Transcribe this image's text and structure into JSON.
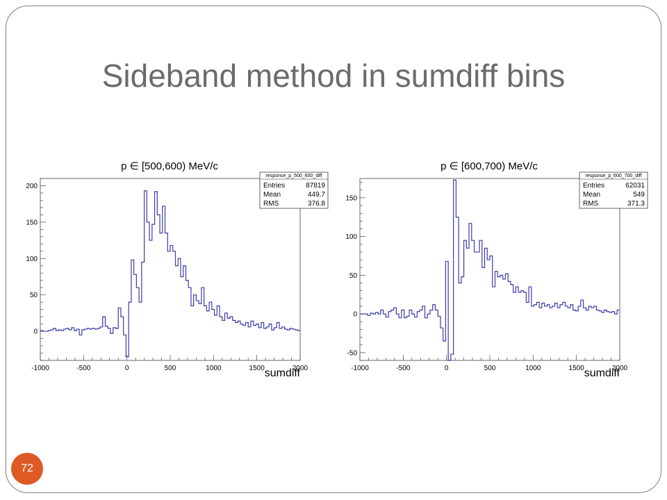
{
  "slide": {
    "title": "Sideband method in sumdiff bins",
    "page_number": "72",
    "colors": {
      "histogram": "#3a3aa8",
      "badge": "#dd5a25",
      "title": "#6b6b6b"
    }
  },
  "chart_data": [
    {
      "type": "histogram",
      "title": "p ∈ [500,600) MeV/c",
      "xlabel": "sumdiff",
      "ylabel": "",
      "xlim": [
        -1000,
        2000
      ],
      "ylim": [
        -40,
        210
      ],
      "xticks": [
        -1000,
        -500,
        0,
        500,
        1000,
        1500,
        2000
      ],
      "xtick_labels": [
        "-1000",
        "-500",
        "0",
        "500",
        "1000",
        "1500",
        "2000"
      ],
      "yticks": [
        0,
        50,
        100,
        150,
        200
      ],
      "ytick_labels": [
        "0",
        "50",
        "100",
        "150",
        "200"
      ],
      "bin_width": 30,
      "bin_start": -1000,
      "values": [
        1,
        0,
        0,
        1,
        2,
        4,
        1,
        2,
        1,
        3,
        4,
        2,
        5,
        1,
        3,
        -5,
        2,
        3,
        4,
        3,
        4,
        3,
        4,
        6,
        20,
        7,
        4,
        -3,
        5,
        4,
        32,
        20,
        -5,
        -35,
        40,
        98,
        78,
        60,
        40,
        95,
        193,
        150,
        125,
        147,
        192,
        160,
        135,
        172,
        135,
        110,
        118,
        110,
        90,
        100,
        75,
        90,
        70,
        60,
        35,
        50,
        42,
        38,
        60,
        35,
        28,
        40,
        30,
        22,
        35,
        20,
        15,
        25,
        18,
        20,
        15,
        12,
        14,
        10,
        8,
        12,
        6,
        14,
        8,
        10,
        5,
        12,
        4,
        6,
        10,
        2,
        5,
        12,
        4,
        6,
        3,
        2,
        4,
        3,
        2,
        1
      ],
      "legend": {
        "name": "response_p_500_600_diff",
        "rows": [
          {
            "label": "Entries",
            "value": "87819"
          },
          {
            "label": "Mean",
            "value": "449.7"
          },
          {
            "label": "RMS",
            "value": "376.8"
          }
        ],
        "placement": "top-right"
      }
    },
    {
      "type": "histogram",
      "title": "p ∈ [600,700) MeV/c",
      "xlabel": "sumdiff",
      "ylabel": "",
      "xlim": [
        -1000,
        2000
      ],
      "ylim": [
        -60,
        175
      ],
      "xticks": [
        -1000,
        -500,
        0,
        500,
        1000,
        1500,
        2000
      ],
      "xtick_labels": [
        "-1000",
        "-500",
        "0",
        "500",
        "1000",
        "1500",
        "2000"
      ],
      "yticks": [
        -50,
        0,
        50,
        100,
        150
      ],
      "ytick_labels": [
        "-50",
        "0",
        "50",
        "100",
        "150"
      ],
      "bin_width": 30,
      "bin_start": -1000,
      "values": [
        0,
        0,
        0,
        -2,
        1,
        0,
        2,
        0,
        5,
        0,
        -4,
        3,
        5,
        8,
        0,
        -5,
        5,
        -5,
        -3,
        5,
        0,
        -4,
        3,
        5,
        10,
        -5,
        0,
        5,
        12,
        5,
        -3,
        -18,
        -35,
        68,
        -60,
        -52,
        173,
        125,
        40,
        48,
        95,
        85,
        117,
        95,
        80,
        80,
        95,
        60,
        85,
        70,
        75,
        35,
        55,
        48,
        50,
        45,
        52,
        42,
        38,
        28,
        35,
        28,
        30,
        28,
        15,
        35,
        10,
        12,
        15,
        8,
        14,
        10,
        12,
        8,
        10,
        14,
        8,
        12,
        15,
        10,
        8,
        12,
        5,
        4,
        10,
        18,
        8,
        5,
        10,
        8,
        10,
        5,
        4,
        2,
        5,
        3,
        2,
        3,
        0,
        5
      ],
      "legend": {
        "name": "response_p_600_700_diff",
        "rows": [
          {
            "label": "Entries",
            "value": "62031"
          },
          {
            "label": "Mean",
            "value": "549"
          },
          {
            "label": "RMS",
            "value": "371.3"
          }
        ],
        "placement": "top-right"
      }
    }
  ]
}
